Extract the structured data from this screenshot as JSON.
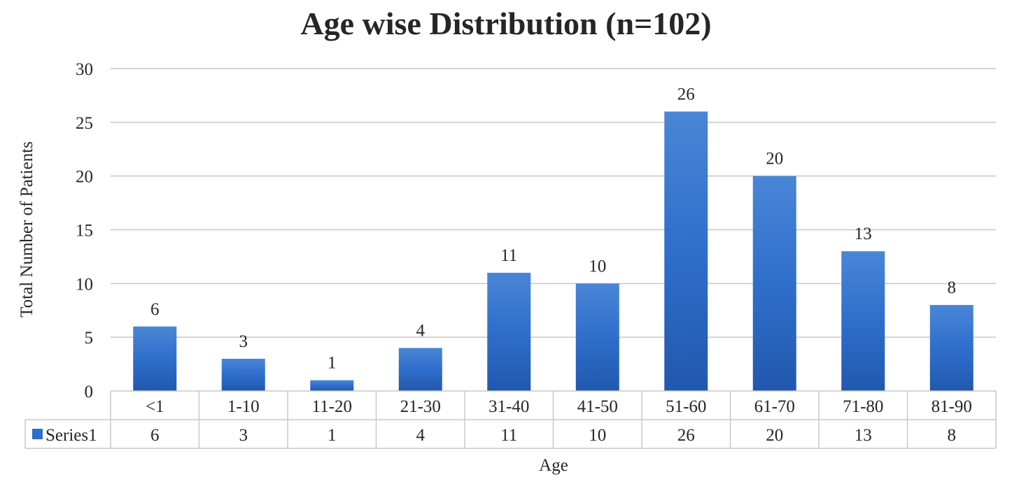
{
  "chart_data": {
    "type": "bar",
    "title": "Age wise Distribution (n=102)",
    "xlabel": "Age",
    "ylabel": "Total Number of Patients",
    "categories": [
      "<1",
      "1-10",
      "11-20",
      "21-30",
      "31-40",
      "41-50",
      "51-60",
      "61-70",
      "71-80",
      "81-90"
    ],
    "series": [
      {
        "name": "Series1",
        "values": [
          6,
          3,
          1,
          4,
          11,
          10,
          26,
          20,
          13,
          8
        ]
      }
    ],
    "ylim": [
      0,
      30
    ],
    "yticks": [
      0,
      5,
      10,
      15,
      20,
      25,
      30
    ],
    "grid": true,
    "data_labels": true,
    "data_table": true,
    "colors": {
      "bar": "#2e6fcc",
      "bar_light": "#4a86d6",
      "bar_dark": "#2258ad",
      "grid": "#c8c8c8",
      "text": "#262626",
      "legend_key": "#2e6fcc"
    }
  }
}
